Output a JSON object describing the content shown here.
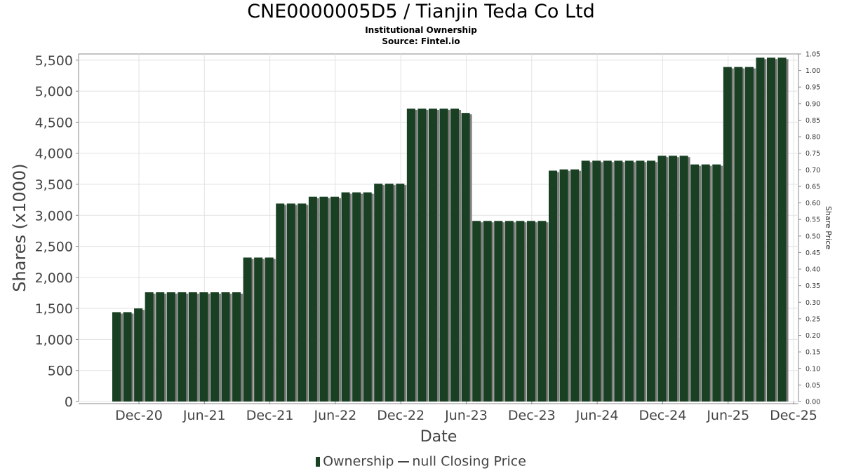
{
  "chart_data": {
    "type": "bar",
    "title": "CNE0000005D5 / Tianjin Teda Co Ltd",
    "subtitle": "Institutional Ownership",
    "source": "Source: Fintel.io",
    "xlabel": "Date",
    "ylabel": "Shares (x1000)",
    "y2label": "Share Price",
    "ylim": [
      0,
      5600
    ],
    "y2lim": [
      0,
      1.05
    ],
    "yticks": [
      "0",
      "500",
      "1,000",
      "1,500",
      "2,000",
      "2,500",
      "3,000",
      "3,500",
      "4,000",
      "4,500",
      "5,000",
      "5,500"
    ],
    "y2ticks": [
      "0.00",
      "0.05",
      "0.10",
      "0.15",
      "0.20",
      "0.25",
      "0.30",
      "0.35",
      "0.40",
      "0.45",
      "0.50",
      "0.55",
      "0.60",
      "0.65",
      "0.70",
      "0.75",
      "0.80",
      "0.85",
      "0.90",
      "0.95",
      "1.00",
      "1.05"
    ],
    "xticks": [
      "Dec-20",
      "Jun-21",
      "Dec-21",
      "Jun-22",
      "Dec-22",
      "Jun-23",
      "Dec-23",
      "Jun-24",
      "Dec-24",
      "Jun-25",
      "Dec-25"
    ],
    "grid": true,
    "legend_position": "bottom",
    "series": [
      {
        "name": "Ownership",
        "color": "#1a4024",
        "values": [
          1440,
          1440,
          1500,
          1760,
          1760,
          1760,
          1760,
          1760,
          1760,
          1760,
          1760,
          1760,
          2320,
          2320,
          2320,
          3190,
          3190,
          3190,
          3300,
          3300,
          3300,
          3370,
          3370,
          3370,
          3510,
          3510,
          3510,
          4720,
          4720,
          4720,
          4720,
          4720,
          4650,
          2910,
          2910,
          2910,
          2910,
          2910,
          2910,
          2910,
          3720,
          3740,
          3740,
          3880,
          3880,
          3880,
          3880,
          3880,
          3880,
          3880,
          3960,
          3960,
          3960,
          3820,
          3820,
          3820,
          5390,
          5390,
          5390,
          5540,
          5540,
          5540
        ]
      },
      {
        "name": "null Closing Price",
        "color": "#444444",
        "values": []
      }
    ]
  },
  "legend": {
    "ownership_label": "Ownership",
    "price_label": "null Closing Price"
  }
}
